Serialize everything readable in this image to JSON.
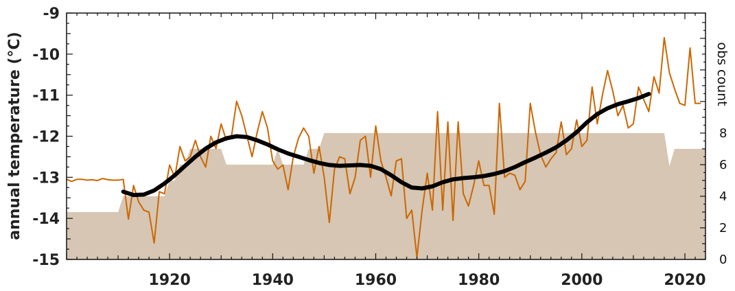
{
  "chart_data": {
    "type": "line",
    "ylabel": "annual temperature (°C)",
    "y2label": "obs count",
    "xlim": [
      1900,
      2024
    ],
    "ylim": [
      -15,
      -9
    ],
    "y2lim": [
      0,
      15.6
    ],
    "x_ticks": [
      1920,
      1940,
      1960,
      1980,
      2000,
      2020
    ],
    "y_ticks": [
      -15,
      -14,
      -13,
      -12,
      -11,
      -10,
      -9
    ],
    "y2_ticks": [
      0,
      2,
      4,
      6,
      8
    ],
    "colors": {
      "annual": "#cc6600",
      "smooth": "#000000",
      "obs_fill": "#d6c6b3"
    },
    "obs_count": {
      "x": [
        1900,
        1908,
        1909,
        1910,
        1911,
        1912,
        1913,
        1914,
        1915,
        1916,
        1917,
        1918,
        1919,
        1920,
        1921,
        1922,
        1923,
        1924,
        1925,
        1926,
        1927,
        1928,
        1929,
        1930,
        1931,
        1932,
        1940,
        1941,
        1942,
        1943,
        1946,
        1947,
        1948,
        1949,
        1950,
        2015,
        2016,
        2017,
        2018,
        2024
      ],
      "y": [
        3,
        3,
        3,
        3,
        4,
        4,
        4,
        4,
        4,
        4,
        4,
        4,
        4,
        5,
        5,
        6,
        6,
        7,
        7,
        7,
        7,
        7,
        7,
        7,
        6,
        6,
        6,
        7,
        6,
        6,
        6,
        7,
        7,
        7,
        8,
        8,
        8,
        5.9,
        7,
        7
      ]
    },
    "annual_series": {
      "name": "",
      "x": [
        1900,
        1901,
        1902,
        1903,
        1904,
        1905,
        1906,
        1907,
        1908,
        1909,
        1910,
        1911,
        1912,
        1913,
        1914,
        1915,
        1916,
        1917,
        1918,
        1919,
        1920,
        1921,
        1922,
        1923,
        1924,
        1925,
        1926,
        1927,
        1928,
        1929,
        1930,
        1931,
        1932,
        1933,
        1934,
        1935,
        1936,
        1937,
        1938,
        1939,
        1940,
        1941,
        1942,
        1943,
        1944,
        1945,
        1946,
        1947,
        1948,
        1949,
        1950,
        1951,
        1952,
        1953,
        1954,
        1955,
        1956,
        1957,
        1958,
        1959,
        1960,
        1961,
        1962,
        1963,
        1964,
        1965,
        1966,
        1967,
        1968,
        1969,
        1970,
        1971,
        1972,
        1973,
        1974,
        1975,
        1976,
        1977,
        1978,
        1979,
        1980,
        1981,
        1982,
        1983,
        1984,
        1985,
        1986,
        1987,
        1988,
        1989,
        1990,
        1991,
        1992,
        1993,
        1994,
        1995,
        1996,
        1997,
        1998,
        1999,
        2000,
        2001,
        2002,
        2003,
        2004,
        2005,
        2006,
        2007,
        2008,
        2009,
        2010,
        2011,
        2012,
        2013,
        2014,
        2015,
        2016,
        2017,
        2018,
        2019,
        2020,
        2021,
        2022,
        2023
      ],
      "y": [
        -13.05,
        -13.1,
        -13.05,
        -13.05,
        -13.07,
        -13.06,
        -13.08,
        -13.03,
        -13.06,
        -13.07,
        -13.07,
        -13.05,
        -14.02,
        -13.2,
        -13.6,
        -13.8,
        -13.85,
        -14.6,
        -13.35,
        -13.4,
        -12.7,
        -13.0,
        -12.25,
        -12.6,
        -12.5,
        -12.1,
        -12.5,
        -12.75,
        -12.0,
        -12.3,
        -11.7,
        -12.1,
        -12.0,
        -11.15,
        -11.5,
        -12.0,
        -12.5,
        -11.9,
        -11.4,
        -11.8,
        -12.6,
        -12.8,
        -12.7,
        -13.3,
        -12.5,
        -12.05,
        -11.8,
        -12.0,
        -12.9,
        -12.25,
        -13.0,
        -14.1,
        -12.8,
        -12.5,
        -12.55,
        -13.4,
        -13.0,
        -12.1,
        -12.0,
        -13.0,
        -11.75,
        -12.6,
        -13.0,
        -13.45,
        -12.6,
        -12.55,
        -14.0,
        -13.8,
        -14.95,
        -13.8,
        -12.9,
        -13.8,
        -11.4,
        -13.8,
        -11.65,
        -14.05,
        -11.65,
        -13.4,
        -13.7,
        -13.2,
        -12.6,
        -13.2,
        -13.2,
        -13.9,
        -11.2,
        -13.0,
        -12.9,
        -12.95,
        -13.3,
        -13.1,
        -11.2,
        -11.9,
        -12.45,
        -12.75,
        -12.55,
        -12.4,
        -11.65,
        -12.45,
        -12.3,
        -11.6,
        -12.25,
        -12.1,
        -10.8,
        -11.7,
        -11.0,
        -10.4,
        -10.9,
        -11.5,
        -11.25,
        -11.8,
        -11.7,
        -10.8,
        -11.1,
        -11.4,
        -10.55,
        -10.95,
        -9.6,
        -10.45,
        -10.85,
        -11.2,
        -11.25,
        -9.85,
        -11.2,
        -11.2
      ]
    },
    "smooth_series": {
      "name": "",
      "x": [
        1911,
        1913,
        1915,
        1917,
        1919,
        1921,
        1923,
        1925,
        1927,
        1929,
        1931,
        1933,
        1935,
        1937,
        1939,
        1941,
        1943,
        1945,
        1947,
        1949,
        1951,
        1953,
        1955,
        1957,
        1959,
        1961,
        1963,
        1965,
        1967,
        1969,
        1971,
        1973,
        1975,
        1977,
        1979,
        1981,
        1983,
        1985,
        1987,
        1989,
        1991,
        1993,
        1995,
        1997,
        1999,
        2001,
        2003,
        2005,
        2007,
        2009,
        2011,
        2013
      ],
      "y": [
        -13.35,
        -13.43,
        -13.42,
        -13.32,
        -13.15,
        -12.95,
        -12.72,
        -12.5,
        -12.3,
        -12.15,
        -12.05,
        -12.0,
        -12.02,
        -12.1,
        -12.2,
        -12.32,
        -12.42,
        -12.5,
        -12.58,
        -12.65,
        -12.7,
        -12.72,
        -12.71,
        -12.7,
        -12.72,
        -12.8,
        -12.95,
        -13.12,
        -13.25,
        -13.27,
        -13.22,
        -13.12,
        -13.05,
        -13.02,
        -13.0,
        -12.97,
        -12.92,
        -12.85,
        -12.75,
        -12.63,
        -12.52,
        -12.4,
        -12.27,
        -12.1,
        -11.9,
        -11.66,
        -11.46,
        -11.32,
        -11.22,
        -11.15,
        -11.07,
        -10.97
      ]
    }
  }
}
